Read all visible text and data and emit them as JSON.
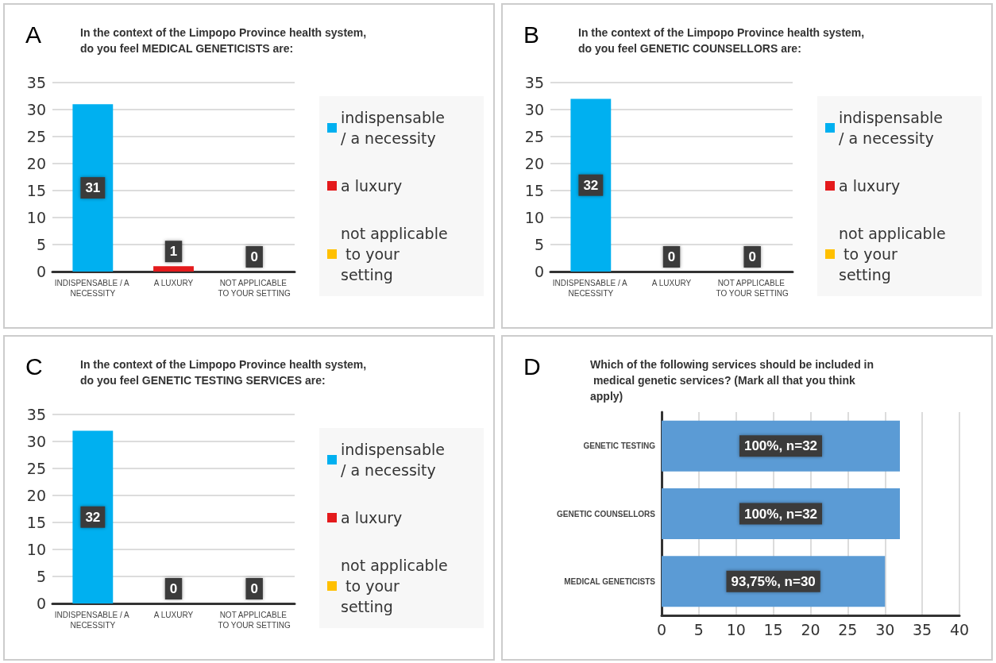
{
  "chart_data": [
    {
      "type": "bar",
      "title": "In the context of the Limpopo Province health system, do you feel MEDICAL GENETICISTS are:",
      "annotations": [
        "A"
      ],
      "categories": [
        "INDISPENSABLE / A NECESSITY",
        "A LUXURY",
        "NOT APPLICABLE TO YOUR SETTING"
      ],
      "stacked": true,
      "series": [
        {
          "name": "indispensable / a necessity",
          "color": "#00b0f0",
          "values": [
            31,
            null,
            null
          ]
        },
        {
          "name": "a luxury",
          "color": "#e41a1c",
          "values": [
            null,
            1,
            null
          ]
        },
        {
          "name": "not applicable to your setting",
          "color": "#ffc000",
          "values": [
            null,
            null,
            0
          ]
        }
      ],
      "ylim": [
        0,
        35
      ],
      "yticks": [
        0,
        5,
        10,
        15,
        20,
        25,
        30,
        35
      ],
      "grid": "y",
      "legend": "right",
      "data_labels": true
    },
    {
      "type": "bar",
      "title": "In the context of the Limpopo Province health system, do you feel GENETIC COUNSELLORS are:",
      "annotations": [
        "B"
      ],
      "categories": [
        "INDISPENSABLE / A NECESSITY",
        "A LUXURY",
        "NOT APPLICABLE TO YOUR SETTING"
      ],
      "stacked": true,
      "series": [
        {
          "name": "indispensable / a necessity",
          "color": "#00b0f0",
          "values": [
            32,
            null,
            null
          ]
        },
        {
          "name": "a luxury",
          "color": "#e41a1c",
          "values": [
            null,
            0,
            null
          ]
        },
        {
          "name": "not applicable to your setting",
          "color": "#ffc000",
          "values": [
            null,
            null,
            0
          ]
        }
      ],
      "ylim": [
        0,
        35
      ],
      "yticks": [
        0,
        5,
        10,
        15,
        20,
        25,
        30,
        35
      ],
      "grid": "y",
      "legend": "right",
      "data_labels": true
    },
    {
      "type": "bar",
      "title": "In the context of the Limpopo Province health system, do you feel GENETIC TESTING SERVICES are:",
      "annotations": [
        "C"
      ],
      "categories": [
        "INDISPENSABLE / A NECESSITY",
        "A LUXURY",
        "NOT APPLICABLE TO YOUR SETTING"
      ],
      "stacked": true,
      "series": [
        {
          "name": "indispensable / a necessity",
          "color": "#00b0f0",
          "values": [
            32,
            null,
            null
          ]
        },
        {
          "name": "a luxury",
          "color": "#e41a1c",
          "values": [
            null,
            0,
            null
          ]
        },
        {
          "name": "not applicable to your setting",
          "color": "#ffc000",
          "values": [
            null,
            null,
            0
          ]
        }
      ],
      "ylim": [
        0,
        35
      ],
      "yticks": [
        0,
        5,
        10,
        15,
        20,
        25,
        30,
        35
      ],
      "grid": "y",
      "legend": "right",
      "data_labels": true
    },
    {
      "type": "bar",
      "title": "Which of the following services should be included in medical genetic services? (Mark all that you think apply)",
      "annotations": [
        "D"
      ],
      "orientation": "horizontal",
      "categories": [
        "GENETIC TESTING",
        "GENETIC COUNSELLORS",
        "MEDICAL GENETICISTS"
      ],
      "values": [
        32,
        32,
        30
      ],
      "color": "#5b9bd5",
      "value_labels": [
        "100%, n=32",
        "100%, n=32",
        "93,75%, n=30"
      ],
      "xlim": [
        0,
        40
      ],
      "xticks": [
        0,
        5,
        10,
        15,
        20,
        25,
        30,
        35,
        40
      ],
      "grid": "x"
    }
  ]
}
